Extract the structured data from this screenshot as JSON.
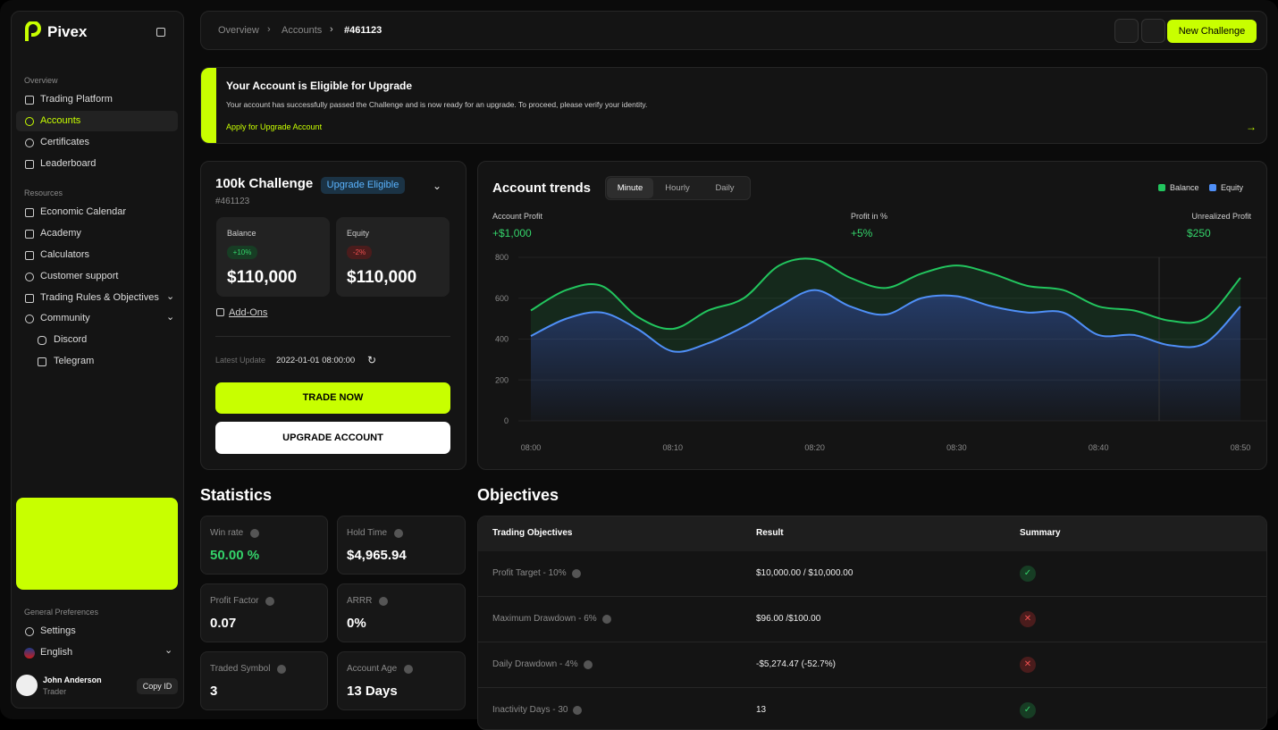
{
  "brand": "Pivex",
  "sidebar": {
    "overview": {
      "title": "Overview",
      "items": [
        "Trading Platform",
        "Accounts",
        "Certificates",
        "Leaderboard"
      ]
    },
    "resources": {
      "title": "Resources",
      "items": [
        "Economic Calendar",
        "Academy",
        "Calculators",
        "Customer support",
        "Trading Rules & Objectives",
        "Community"
      ],
      "community": [
        "Discord",
        "Telegram"
      ]
    },
    "preferences": {
      "title": "General Preferences",
      "settings": "Settings",
      "language": "English"
    },
    "user": {
      "name": "John Anderson",
      "role": "Trader",
      "copy": "Copy ID"
    }
  },
  "topbar": {
    "breadcrumbs": [
      "Overview",
      "Accounts",
      "#461123"
    ],
    "button": "New Challenge"
  },
  "banner": {
    "title": "Your Account is Eligible for Upgrade",
    "text": "Your account has successfully passed the Challenge and is now ready for an upgrade. To proceed, please verify your identity.",
    "link": "Apply for Upgrade Account"
  },
  "account": {
    "title": "100k Challenge",
    "badge": "Upgrade Eligible",
    "id": "#461123",
    "balance": {
      "label": "Balance",
      "change": "+10%",
      "value": "$110,000"
    },
    "equity": {
      "label": "Equity",
      "change": "-2%",
      "value": "$110,000"
    },
    "addons": "Add-Ons",
    "update_label": "Latest Update",
    "update_value": "2022-01-01 08:00:00",
    "trade": "TRADE NOW",
    "upgrade": "UPGRADE ACCOUNT"
  },
  "trends": {
    "type": "line",
    "title": "Account trends",
    "tabs": [
      "Minute",
      "Hourly",
      "Daily"
    ],
    "metrics": [
      {
        "label": "Account Profit",
        "value": "+$1,000"
      },
      {
        "label": "Profit in %",
        "value": "+5%"
      },
      {
        "label": "Unrealized Profit",
        "value": "$250"
      }
    ],
    "categories": [
      "08:00",
      null,
      null,
      null,
      "08:10",
      null,
      null,
      null,
      "08:20",
      null,
      null,
      null,
      "08:30",
      null,
      null,
      null,
      "08:40",
      null,
      null,
      null,
      "08:50"
    ],
    "series": [
      {
        "name": "Balance",
        "color": "#22c55e",
        "values": [
          540,
          640,
          660,
          510,
          450,
          540,
          600,
          760,
          790,
          700,
          650,
          720,
          760,
          720,
          660,
          640,
          560,
          540,
          490,
          500,
          700
        ]
      },
      {
        "name": "Equity",
        "color": "#4f8ff7",
        "values": [
          415,
          500,
          530,
          450,
          340,
          380,
          460,
          560,
          640,
          560,
          520,
          600,
          610,
          560,
          530,
          530,
          420,
          420,
          370,
          380,
          560
        ]
      }
    ],
    "ylim": [
      0,
      800
    ],
    "yticks": [
      0,
      200,
      400,
      600,
      800
    ],
    "grid": true
  },
  "statistics": {
    "title": "Statistics",
    "cards": [
      {
        "label": "Win rate",
        "value": "50.00 %"
      },
      {
        "label": "Hold Time",
        "value": "$4,965.94"
      },
      {
        "label": "Profit Factor",
        "value": "0.07"
      },
      {
        "label": "ARRR",
        "value": "0%"
      },
      {
        "label": "Traded Symbol",
        "value": "3"
      },
      {
        "label": "Account Age",
        "value": "13 Days"
      }
    ]
  },
  "objectives": {
    "title": "Objectives",
    "header": [
      "Trading Objectives",
      "Result",
      "Summary"
    ],
    "rows": [
      [
        "Profit Target - 10%",
        "$10,000.00 / $10,000.00"
      ],
      [
        "Maximum Drawdown - 6%",
        "$96.00 /$100.00"
      ],
      [
        "Daily Drawdown - 4%",
        "-$5,274.47 (-52.7%)"
      ],
      [
        "Inactivity Days - 30",
        "13"
      ]
    ]
  }
}
